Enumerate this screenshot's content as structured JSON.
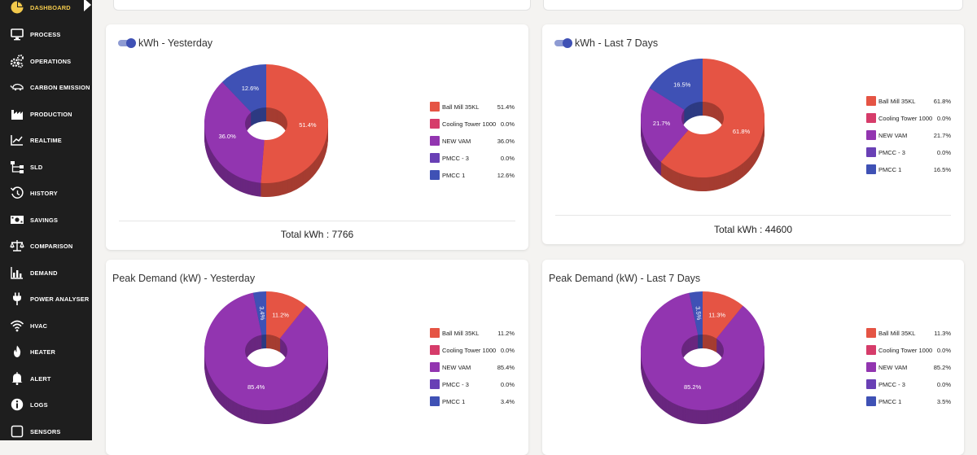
{
  "sidebar": {
    "items": [
      {
        "label": "DASHBOARD",
        "icon": "pie-chart-icon"
      },
      {
        "label": "PROCESS",
        "icon": "monitor-icon"
      },
      {
        "label": "OPERATIONS",
        "icon": "gears-icon"
      },
      {
        "label": "CARBON EMISSION",
        "icon": "car-emission-icon"
      },
      {
        "label": "PRODUCTION",
        "icon": "factory-icon"
      },
      {
        "label": "REALTIME",
        "icon": "line-chart-icon"
      },
      {
        "label": "SLD",
        "icon": "sitemap-icon"
      },
      {
        "label": "HISTORY",
        "icon": "history-icon"
      },
      {
        "label": "SAVINGS",
        "icon": "money-icon"
      },
      {
        "label": "COMPARISON",
        "icon": "balance-scale-icon"
      },
      {
        "label": "DEMAND",
        "icon": "bar-chart-icon"
      },
      {
        "label": "POWER ANALYSER",
        "icon": "plug-icon"
      },
      {
        "label": "HVAC",
        "icon": "wifi-icon"
      },
      {
        "label": "HEATER",
        "icon": "flame-icon"
      },
      {
        "label": "ALERT",
        "icon": "bell-icon"
      },
      {
        "label": "LOGS",
        "icon": "info-icon"
      },
      {
        "label": "SENSORS",
        "icon": "square-icon"
      }
    ],
    "active_index": 0
  },
  "colors": {
    "Ball Mill 35KL": "#e55444",
    "Cooling Tower 1000": "#d63c6a",
    "NEW VAM": "#9235b0",
    "PMCC - 3": "#6940b5",
    "PMCC 1": "#3f51b5"
  },
  "cards": [
    {
      "title": "kWh - Yesterday",
      "legend": [
        {
          "label": "Ball Mill 35KL",
          "value": "51.4%"
        },
        {
          "label": "Cooling Tower 1000",
          "value": "0.0%"
        },
        {
          "label": "NEW VAM",
          "value": "36.0%"
        },
        {
          "label": "PMCC - 3",
          "value": "0.0%"
        },
        {
          "label": "PMCC 1",
          "value": "12.6%"
        }
      ],
      "total": "Total kWh : 7766"
    },
    {
      "title": "kWh - Last 7 Days",
      "legend": [
        {
          "label": "Ball Mill 35KL",
          "value": "61.8%"
        },
        {
          "label": "Cooling Tower 1000",
          "value": "0.0%"
        },
        {
          "label": "NEW VAM",
          "value": "21.7%"
        },
        {
          "label": "PMCC - 3",
          "value": "0.0%"
        },
        {
          "label": "PMCC 1",
          "value": "16.5%"
        }
      ],
      "total": "Total kWh : 44600"
    },
    {
      "title": "Peak Demand (kW) - Yesterday",
      "legend": [
        {
          "label": "Ball Mill 35KL",
          "value": "11.2%"
        },
        {
          "label": "Cooling Tower 1000",
          "value": "0.0%"
        },
        {
          "label": "NEW VAM",
          "value": "85.4%"
        },
        {
          "label": "PMCC - 3",
          "value": "0.0%"
        },
        {
          "label": "PMCC 1",
          "value": "3.4%"
        }
      ]
    },
    {
      "title": "Peak Demand (kW) - Last 7 Days",
      "legend": [
        {
          "label": "Ball Mill 35KL",
          "value": "11.3%"
        },
        {
          "label": "Cooling Tower 1000",
          "value": "0.0%"
        },
        {
          "label": "NEW VAM",
          "value": "85.2%"
        },
        {
          "label": "PMCC - 3",
          "value": "0.0%"
        },
        {
          "label": "PMCC 1",
          "value": "3.5%"
        }
      ]
    }
  ],
  "chart_data": [
    {
      "type": "pie",
      "title": "kWh - Yesterday",
      "categories": [
        "Ball Mill 35KL",
        "Cooling Tower 1000",
        "NEW VAM",
        "PMCC - 3",
        "PMCC 1"
      ],
      "values": [
        51.4,
        0.0,
        36.0,
        0.0,
        12.6
      ],
      "slice_labels": [
        "51.4%",
        "",
        "36.0%",
        "",
        "12.6%"
      ]
    },
    {
      "type": "pie",
      "title": "kWh - Last 7 Days",
      "categories": [
        "Ball Mill 35KL",
        "Cooling Tower 1000",
        "NEW VAM",
        "PMCC - 3",
        "PMCC 1"
      ],
      "values": [
        61.8,
        0.0,
        21.7,
        0.0,
        16.5
      ],
      "slice_labels": [
        "61.8%",
        "",
        "21.7%",
        "",
        "16.5%"
      ]
    },
    {
      "type": "pie",
      "title": "Peak Demand (kW) - Yesterday",
      "categories": [
        "Ball Mill 35KL",
        "Cooling Tower 1000",
        "NEW VAM",
        "PMCC - 3",
        "PMCC 1"
      ],
      "values": [
        11.2,
        0.0,
        85.4,
        0.0,
        3.4
      ],
      "slice_labels": [
        "11.2%",
        "",
        "85.4%",
        "",
        "3.4%"
      ]
    },
    {
      "type": "pie",
      "title": "Peak Demand (kW) - Last 7 Days",
      "categories": [
        "Ball Mill 35KL",
        "Cooling Tower 1000",
        "NEW VAM",
        "PMCC - 3",
        "PMCC 1"
      ],
      "values": [
        11.3,
        0.0,
        85.2,
        0.0,
        3.5
      ],
      "slice_labels": [
        "11.3%",
        "",
        "85.2%",
        "",
        "3.5%"
      ]
    }
  ]
}
